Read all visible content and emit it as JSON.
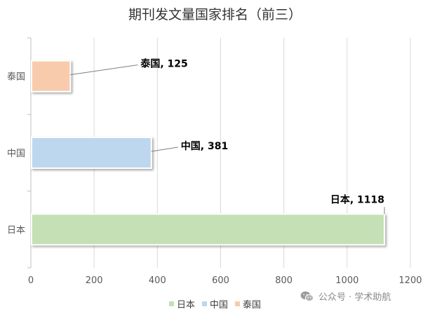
{
  "chart_data": {
    "type": "bar",
    "orientation": "horizontal",
    "title": "期刊发文量国家排名（前三）",
    "categories": [
      "泰国",
      "中国",
      "日本"
    ],
    "values": [
      125,
      381,
      1118
    ],
    "colors": [
      "#f8cbad",
      "#bdd7ee",
      "#c5e0b4"
    ],
    "data_labels": [
      "泰国, 125",
      "中国, 381",
      "日本, 1118"
    ],
    "xlim": [
      0,
      1200
    ],
    "x_ticks": [
      "0",
      "200",
      "400",
      "600",
      "800",
      "1000",
      "1200"
    ],
    "grid": "vertical",
    "legend": {
      "position": "bottom",
      "entries": [
        {
          "label": "日本",
          "color": "#c5e0b4"
        },
        {
          "label": "中国",
          "color": "#bdd7ee"
        },
        {
          "label": "泰国",
          "color": "#f8cbad"
        }
      ]
    }
  },
  "watermark": {
    "text": "公众号 · 学术助航",
    "icon": "wechat-icon"
  }
}
